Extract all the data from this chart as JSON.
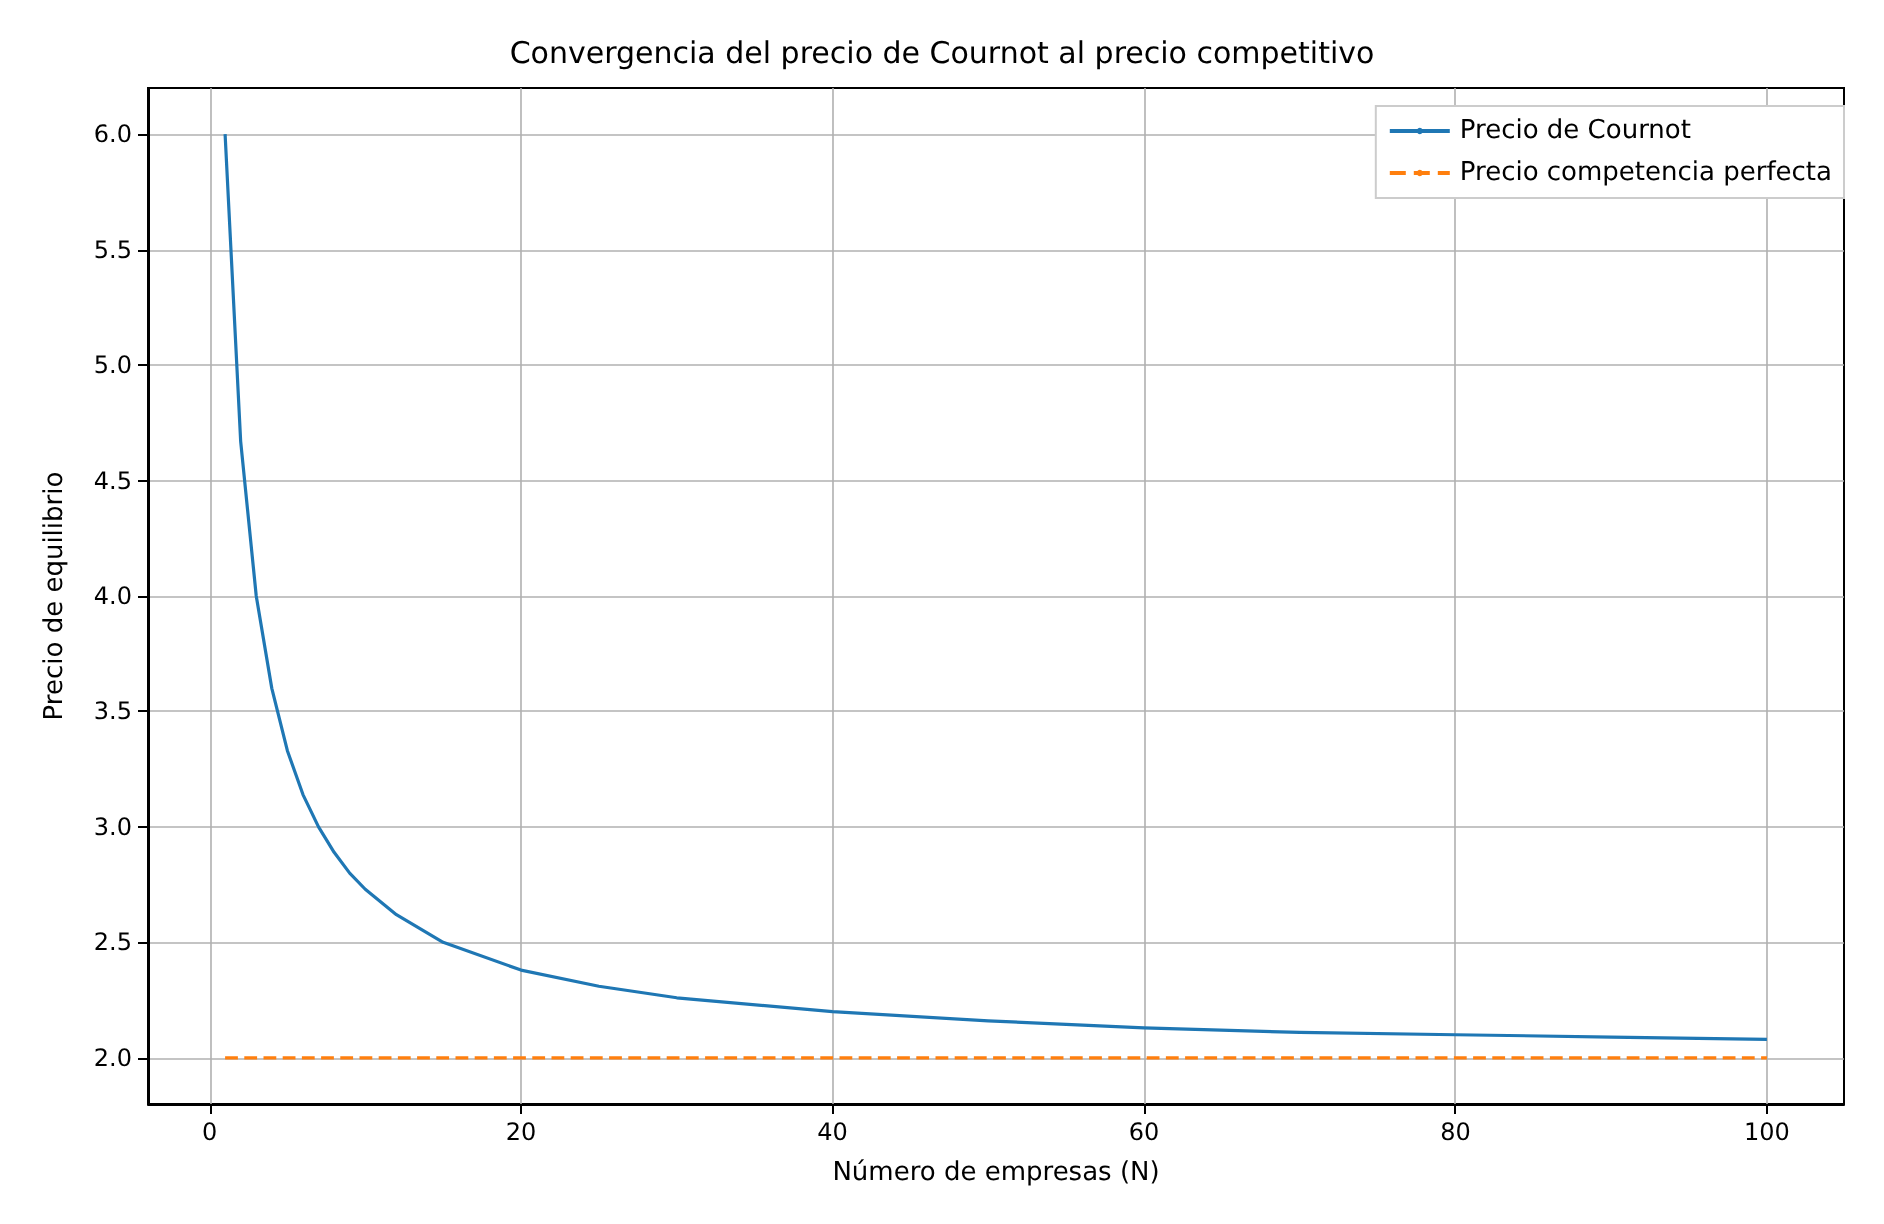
{
  "chart_data": {
    "type": "line",
    "title": "Convergencia del precio de Cournot al precio competitivo",
    "xlabel": "Número de empresas (N)",
    "ylabel": "Precio de equilibrio",
    "series": [
      {
        "name": "Precio de Cournot",
        "color": "#1f77b4",
        "line_style": "solid",
        "x": [
          1,
          2,
          3,
          4,
          5,
          6,
          7,
          8,
          9,
          10,
          12,
          15,
          20,
          25,
          30,
          40,
          50,
          60,
          70,
          80,
          90,
          100
        ],
        "values": [
          6,
          4.67,
          4,
          3.6,
          3.33,
          3.14,
          3,
          2.89,
          2.8,
          2.73,
          2.62,
          2.5,
          2.38,
          2.31,
          2.26,
          2.2,
          2.16,
          2.13,
          2.11,
          2.1,
          2.09,
          2.08
        ]
      },
      {
        "name": "Precio competencia perfecta",
        "color": "#ff7f0e",
        "line_style": "dashed",
        "x": [
          1,
          100
        ],
        "values": [
          2,
          2
        ]
      }
    ],
    "xlim": [
      -3.95,
      104.95
    ],
    "xticks": [
      0,
      20,
      40,
      60,
      80,
      100
    ],
    "ylim": [
      1.8,
      6.2
    ],
    "yticks": [
      {
        "value": 2,
        "label": "2.0"
      },
      2.5,
      {
        "value": 3,
        "label": "3.0"
      },
      3.5,
      {
        "value": 4,
        "label": "4.0"
      },
      4.5,
      {
        "value": 5,
        "label": "5.0"
      },
      5.5,
      {
        "value": 6,
        "label": "6.0"
      }
    ],
    "grid": true,
    "legend": "top right",
    "marker": "none"
  }
}
